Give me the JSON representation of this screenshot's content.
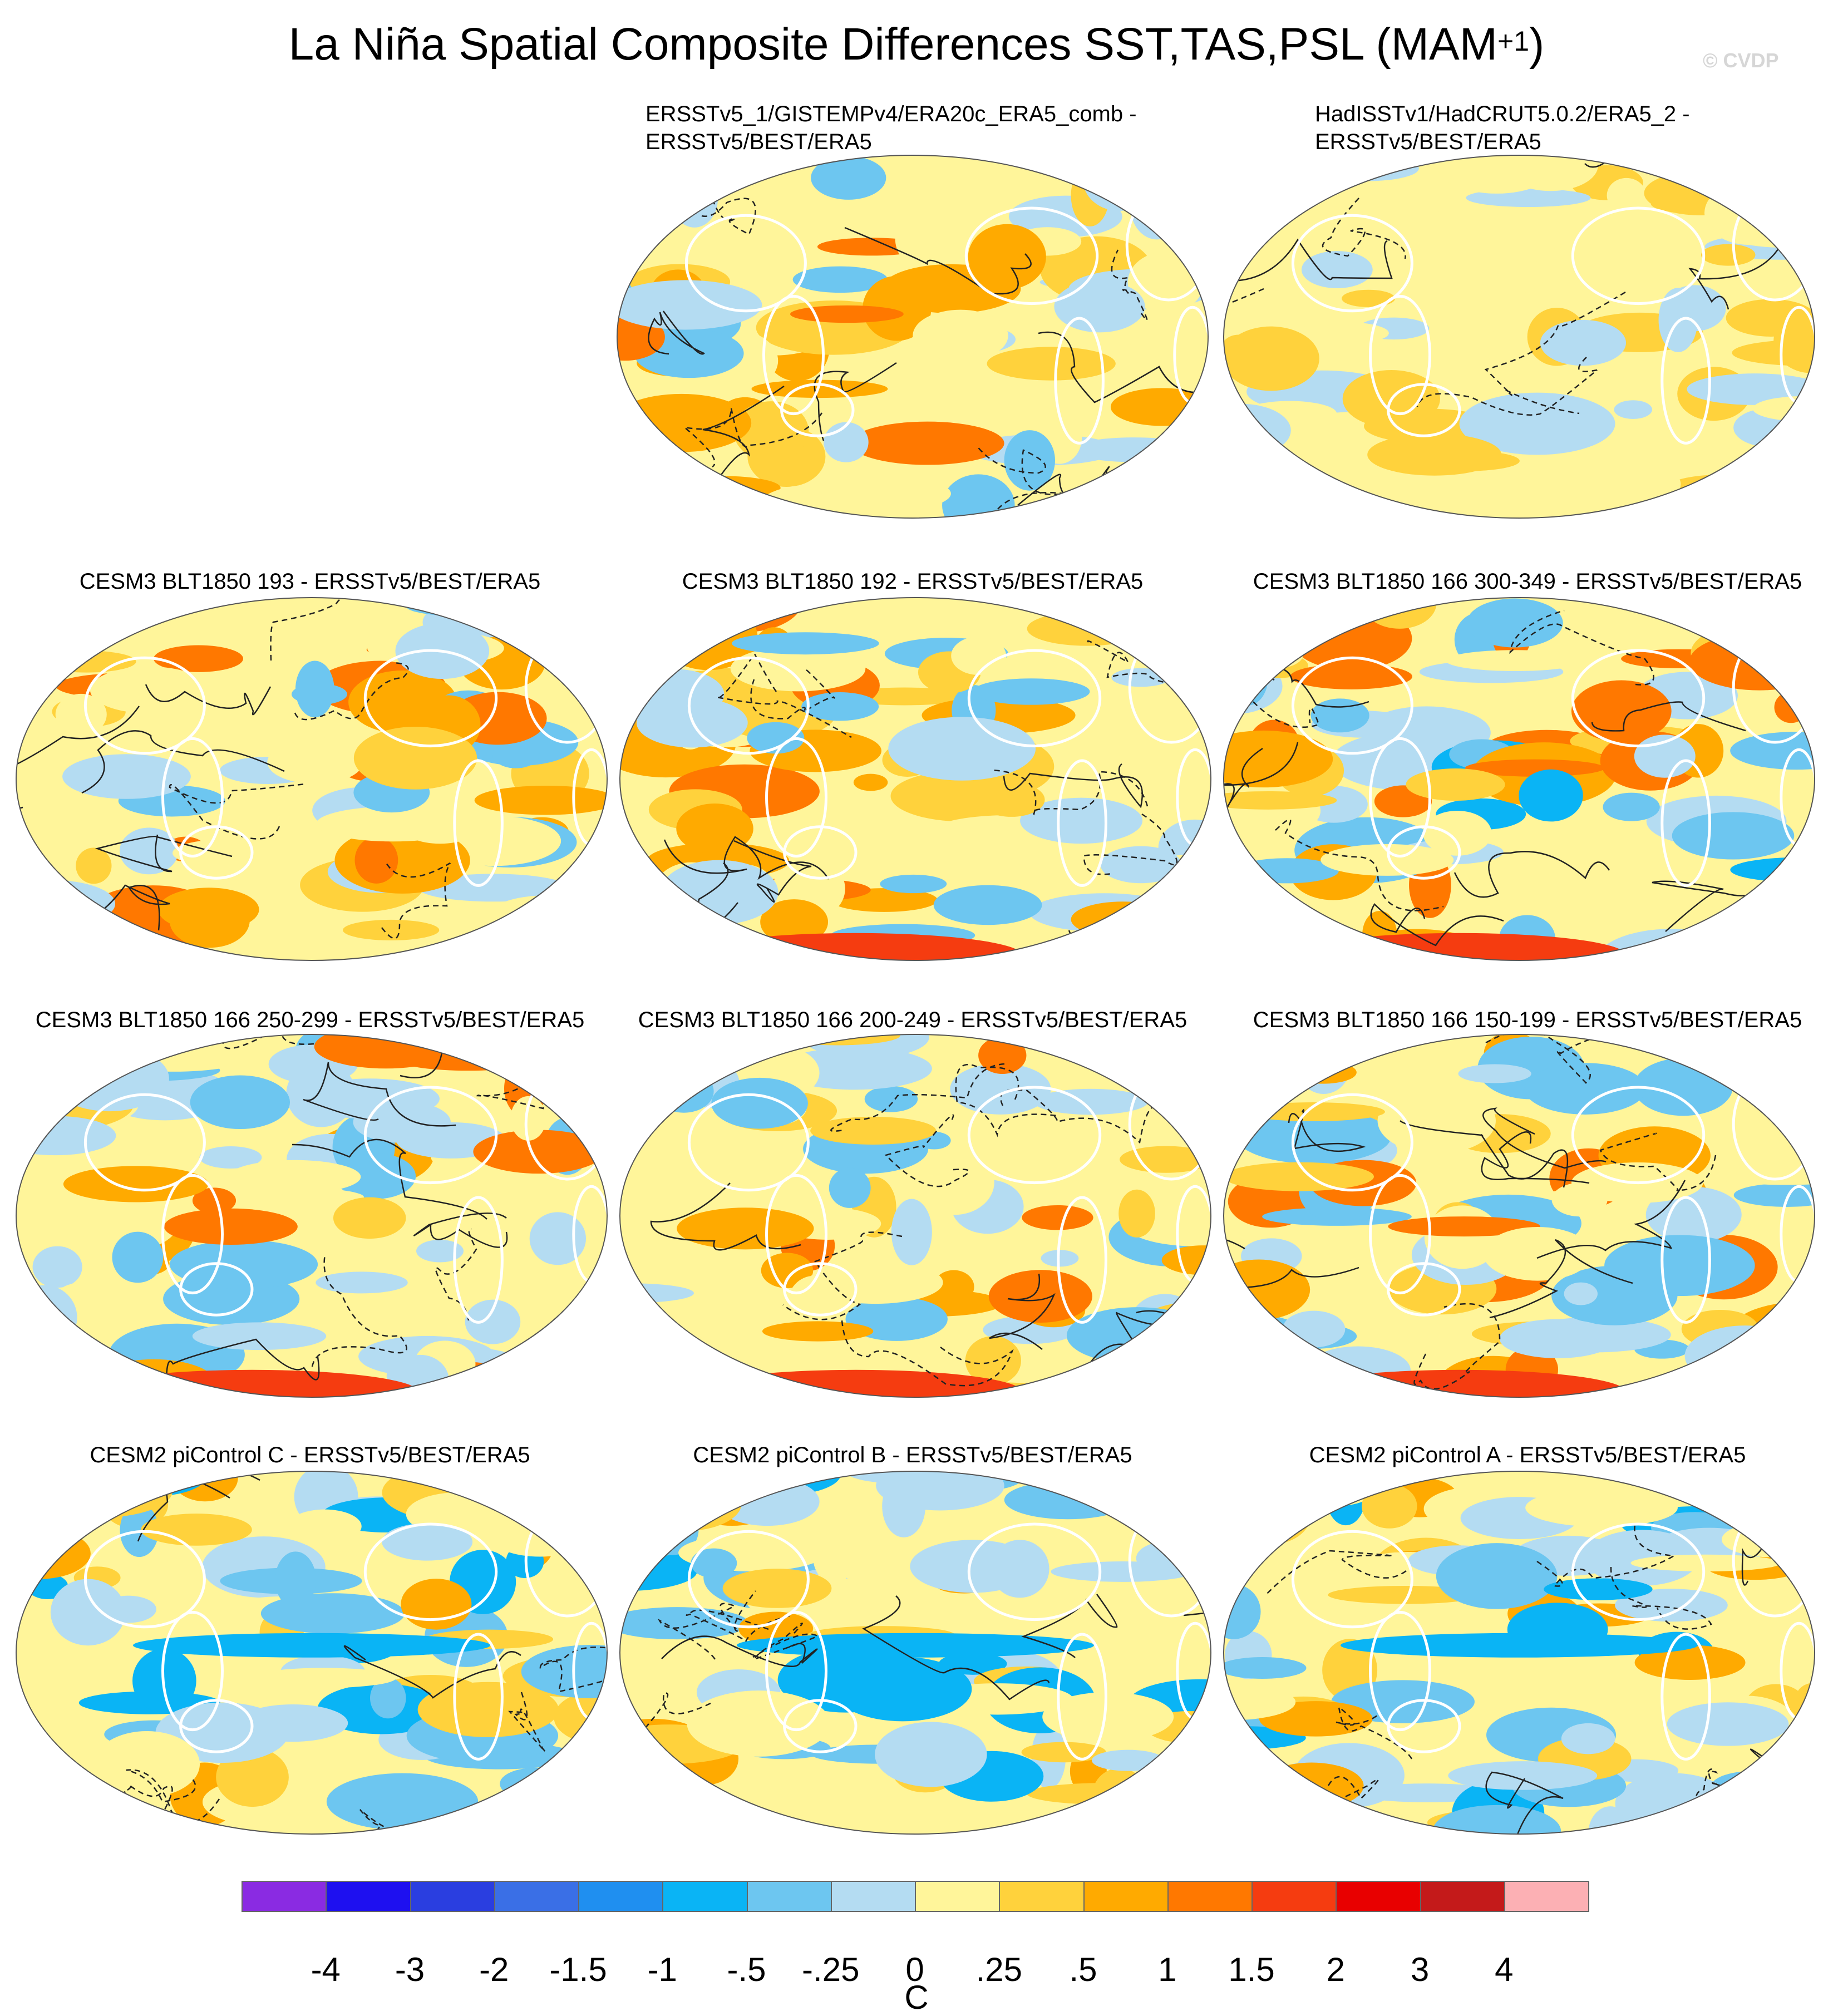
{
  "title": {
    "main": "La Niña Spatial Composite Differences SST,TAS,PSL (MAM",
    "superscript": "+1",
    "close": ")"
  },
  "copyright": "© CVDP",
  "panels": [
    {
      "title": "ERSSTv5_1/GISTEMPv4/ERA20c_ERA5_comb -\nERSSTv5/BEST/ERA5",
      "style": "mixed"
    },
    {
      "title": "HadISSTv1/HadCRUT5.0.2/ERA5_2 -\nERSSTv5/BEST/ERA5",
      "style": "warm-weak"
    },
    {
      "title": "CESM3 BLT1850 193 - ERSSTv5/BEST/ERA5",
      "style": "mixed"
    },
    {
      "title": "CESM3 BLT1850 192 - ERSSTv5/BEST/ERA5",
      "style": "mixed-hot-south"
    },
    {
      "title": "CESM3 BLT1850 166 300-349 - ERSSTv5/BEST/ERA5",
      "style": "strong"
    },
    {
      "title": "CESM3 BLT1850 166 250-299 - ERSSTv5/BEST/ERA5",
      "style": "mixed-hot-south"
    },
    {
      "title": "CESM3 BLT1850 166 200-249 - ERSSTv5/BEST/ERA5",
      "style": "mixed-hot-south"
    },
    {
      "title": "CESM3 BLT1850 166 150-199 - ERSSTv5/BEST/ERA5",
      "style": "mixed-hot-south"
    },
    {
      "title": "CESM2 piControl C - ERSSTv5/BEST/ERA5",
      "style": "cool-band"
    },
    {
      "title": "CESM2 piControl B - ERSSTv5/BEST/ERA5",
      "style": "cool-band"
    },
    {
      "title": "CESM2 piControl A - ERSSTv5/BEST/ERA5",
      "style": "cool-band"
    }
  ],
  "colorbar": {
    "colors": [
      "#8a2be2",
      "#1e10f0",
      "#2a3ee0",
      "#3a6fe6",
      "#1f8ff0",
      "#0ab4f5",
      "#6dc6f0",
      "#b4dcf2",
      "#fff59a",
      "#ffd23c",
      "#ffaa00",
      "#ff7800",
      "#f53c10",
      "#e80000",
      "#c41a1a",
      "#fcb0b4"
    ],
    "labels": [
      "-4",
      "-3",
      "-2",
      "-1.5",
      "-1",
      "-.5",
      "-.25",
      "0",
      ".25",
      ".5",
      "1",
      "1.5",
      "2",
      "3",
      "4"
    ],
    "unit": "C"
  }
}
